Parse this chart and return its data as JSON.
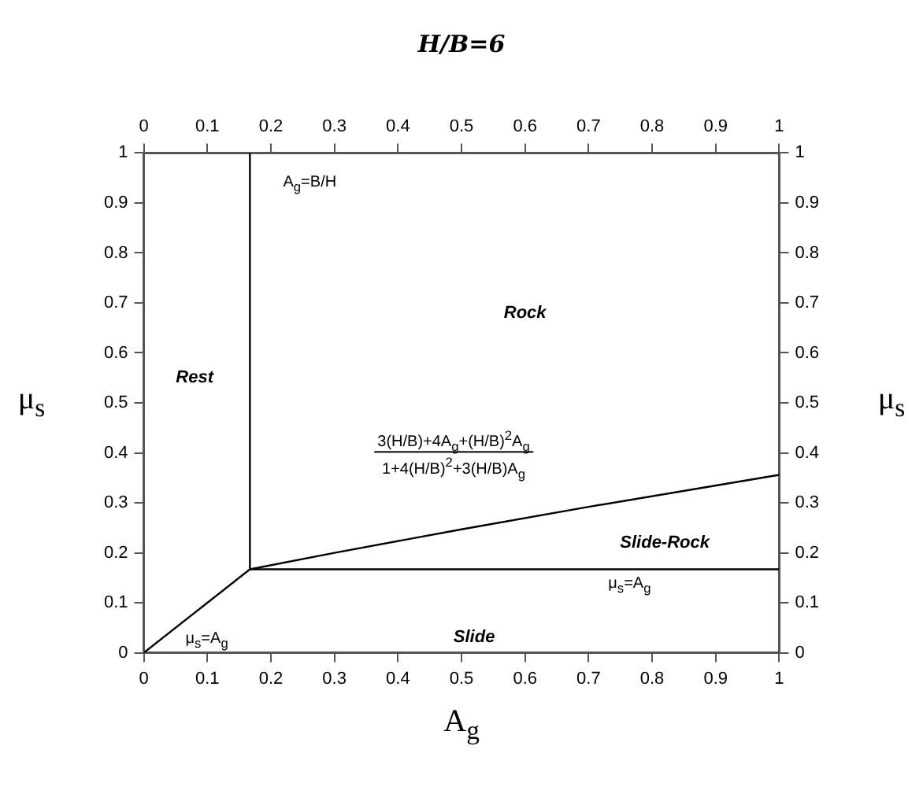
{
  "chart_data": {
    "type": "line",
    "title": "H/B=6",
    "xlabel": "A$_{g}$",
    "ylabel": "μ$_{s}$",
    "y2label": "μ$_{s}$",
    "xlim": [
      0,
      1
    ],
    "xticks": [
      0,
      0.1,
      0.2,
      0.3,
      0.4,
      0.5,
      0.6,
      0.7,
      0.8,
      0.9,
      1
    ],
    "x2lim": [
      0,
      1
    ],
    "x2ticks": [
      0,
      0.1,
      0.2,
      0.3,
      0.4,
      0.5,
      0.6,
      0.7,
      0.8,
      0.9,
      1
    ],
    "ylim": [
      0,
      1
    ],
    "yticks": [
      0,
      0.1,
      0.2,
      0.3,
      0.4,
      0.5,
      0.6,
      0.7,
      0.8,
      0.9,
      1
    ],
    "y2lim": [
      0,
      1
    ],
    "y2ticks": [
      0,
      0.1,
      0.2,
      0.3,
      0.4,
      0.5,
      0.6,
      0.7,
      0.8,
      0.9,
      1
    ],
    "grid": false,
    "legend": false,
    "marker": "none",
    "line_style": "solid",
    "series": [
      {
        "name": "μ$_{s}$=A$_{g}$",
        "color": "#000000",
        "x": [
          0,
          0.167
        ],
        "values": [
          0,
          0.167
        ]
      },
      {
        "name": "A$_{g}$=B/H",
        "color": "#000000",
        "x": [
          0.167,
          0.167
        ],
        "values": [
          0.167,
          1
        ]
      },
      {
        "name": "μ$_{s}$=A$_{g}$",
        "color": "#000000",
        "x": [
          0.167,
          1
        ],
        "values": [
          0.167,
          0.167
        ]
      },
      {
        "name": "3(H/B)+4A$_{g}$+(H/B)$^{2}$A$_{g}$\n1+4(H/B)$^{2}$+3(H/B)A$_{g}$",
        "color": "#000000",
        "x": [
          0.167,
          0.3,
          0.5,
          0.7,
          1
        ],
        "values": [
          0.167,
          0.2,
          0.247,
          0.292,
          0.356
        ]
      }
    ],
    "annotations": [
      "Rock",
      "Rest",
      "Slide-Rock",
      "Slide"
    ]
  }
}
